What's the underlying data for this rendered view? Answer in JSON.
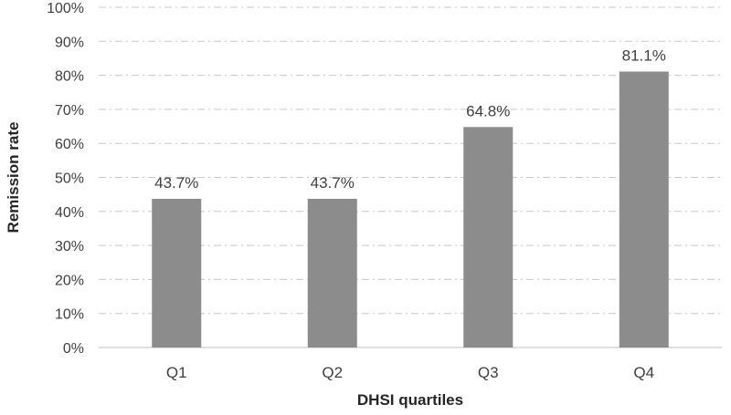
{
  "chart_data": {
    "type": "bar",
    "title": "",
    "xlabel": "DHSI quartiles",
    "ylabel": "Remission rate",
    "categories": [
      "Q1",
      "Q2",
      "Q3",
      "Q4"
    ],
    "values": [
      43.7,
      43.7,
      64.8,
      81.1
    ],
    "value_labels": [
      "43.7%",
      "43.7%",
      "64.8%",
      "81.1%"
    ],
    "ylim": [
      0,
      100
    ],
    "yticks": [
      "0%",
      "10%",
      "20%",
      "30%",
      "40%",
      "50%",
      "60%",
      "70%",
      "80%",
      "90%",
      "100%"
    ],
    "grid": true,
    "legend": "none",
    "bar_color": "#8c8c8c"
  }
}
